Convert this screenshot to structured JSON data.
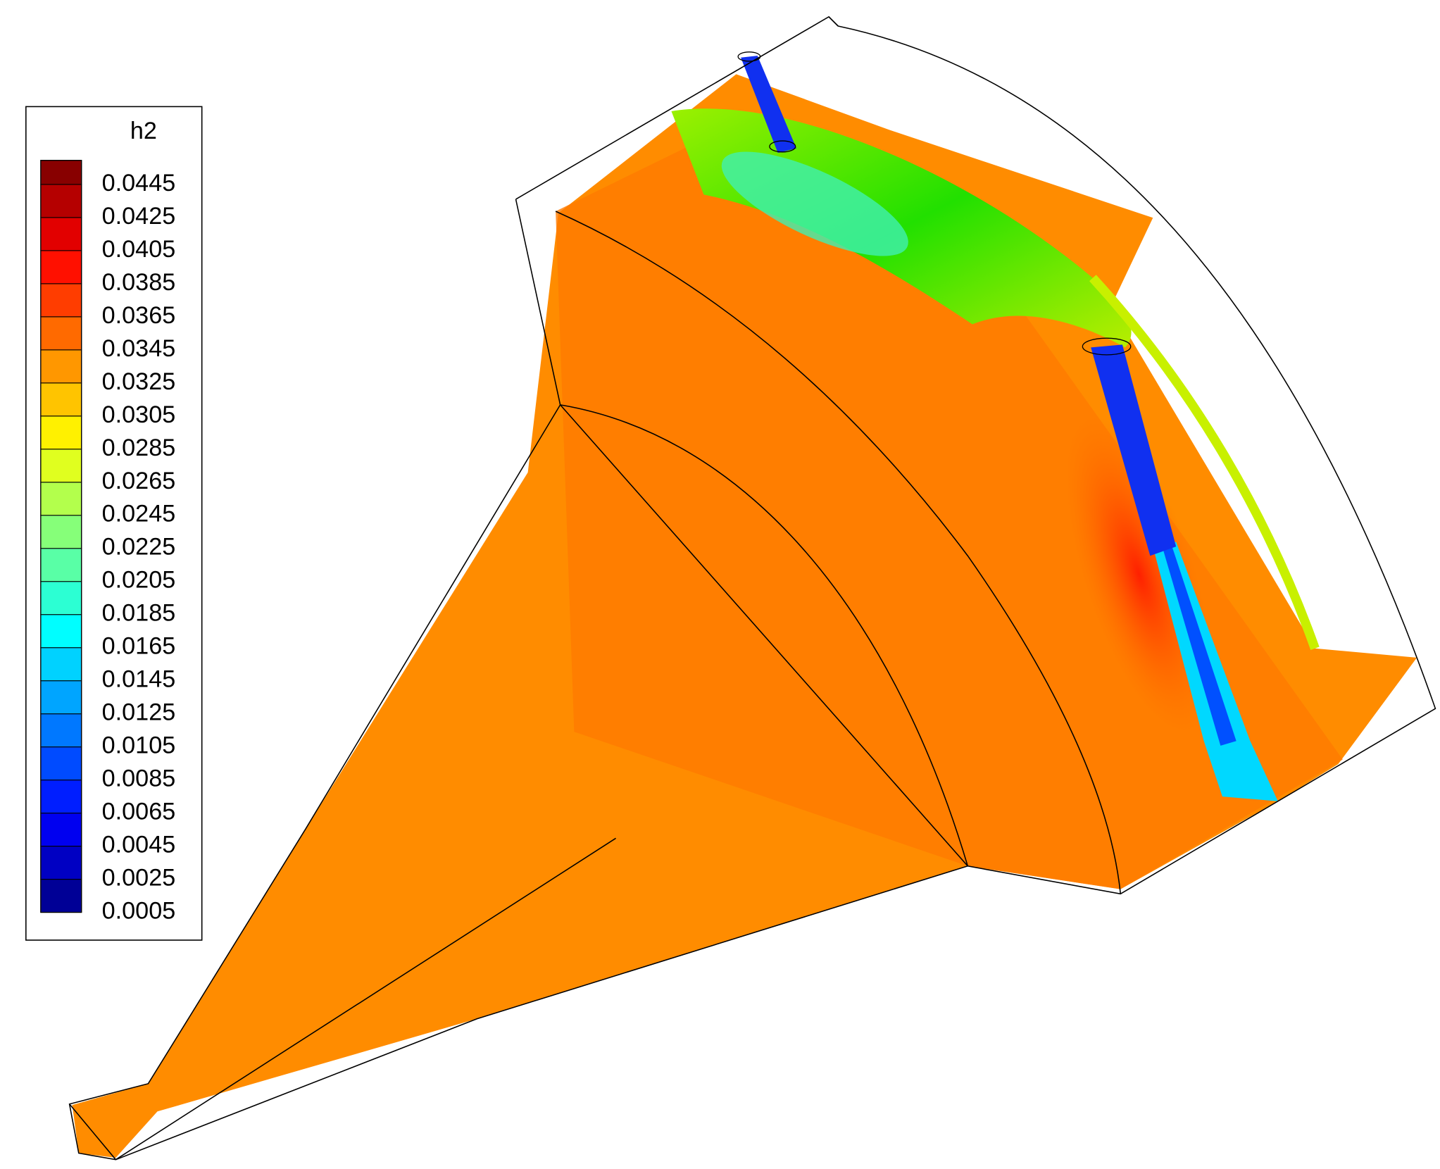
{
  "legend": {
    "title": "h2",
    "levels": [
      "0.0445",
      "0.0425",
      "0.0405",
      "0.0385",
      "0.0365",
      "0.0345",
      "0.0325",
      "0.0305",
      "0.0285",
      "0.0265",
      "0.0245",
      "0.0225",
      "0.0205",
      "0.0185",
      "0.0165",
      "0.0145",
      "0.0125",
      "0.0105",
      "0.0085",
      "0.0065",
      "0.0045",
      "0.0025",
      "0.0005"
    ]
  }
}
